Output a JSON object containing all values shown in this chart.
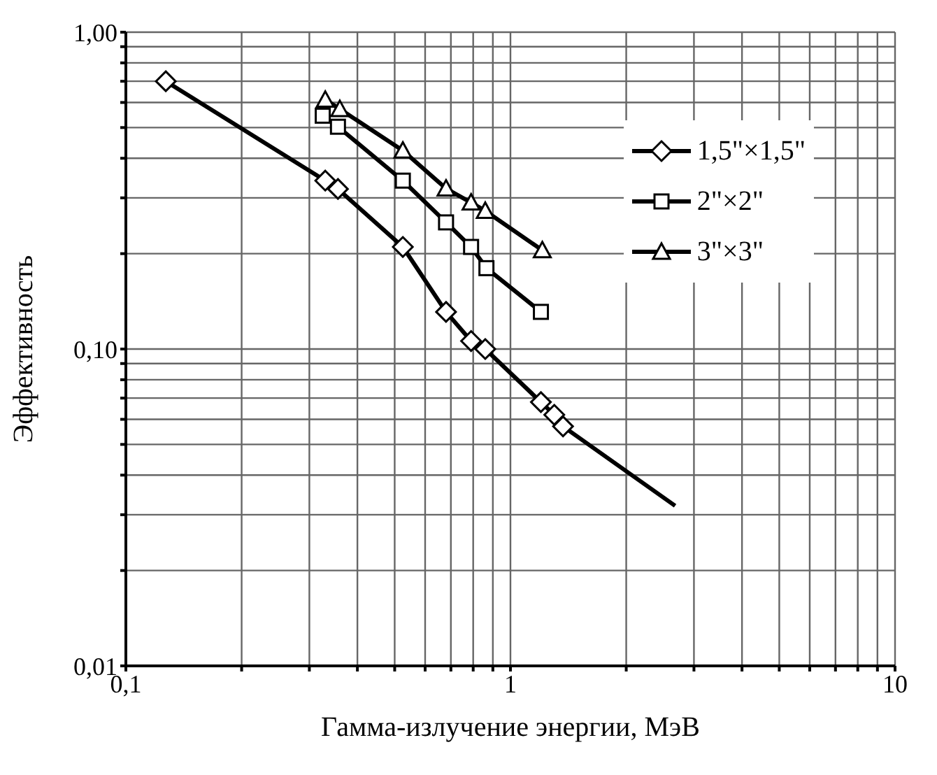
{
  "chart_data": {
    "type": "line",
    "xlabel": "Гамма-излучение энергии, МэВ",
    "ylabel": "Эффективность",
    "log": "xy",
    "grid": true,
    "legend": "top right",
    "line_style": "solid",
    "xlim": [
      0.1,
      10
    ],
    "ylim": [
      0.01,
      1
    ],
    "xticks": [
      {
        "value": 0.1,
        "label": "0,1"
      },
      {
        "value": 0.2,
        "label": null
      },
      {
        "value": 0.3,
        "label": null
      },
      {
        "value": 0.4,
        "label": null
      },
      {
        "value": 0.5,
        "label": null
      },
      {
        "value": 0.6,
        "label": null
      },
      {
        "value": 0.7,
        "label": null
      },
      {
        "value": 0.8,
        "label": null
      },
      {
        "value": 0.9,
        "label": null
      },
      1,
      {
        "value": 2,
        "label": null
      },
      {
        "value": 3,
        "label": null
      },
      {
        "value": 4,
        "label": null
      },
      {
        "value": 5,
        "label": null
      },
      {
        "value": 6,
        "label": null
      },
      {
        "value": 7,
        "label": null
      },
      {
        "value": 8,
        "label": null
      },
      {
        "value": 9,
        "label": null
      },
      10
    ],
    "yticks": [
      {
        "value": 0.01,
        "label": "0,01"
      },
      {
        "value": 0.02,
        "label": null
      },
      {
        "value": 0.03,
        "label": null
      },
      {
        "value": 0.04,
        "label": null
      },
      {
        "value": 0.05,
        "label": null
      },
      {
        "value": 0.06,
        "label": null
      },
      {
        "value": 0.07,
        "label": null
      },
      {
        "value": 0.08,
        "label": null
      },
      {
        "value": 0.09,
        "label": null
      },
      {
        "value": 0.1,
        "label": "0,10"
      },
      {
        "value": 0.2,
        "label": null
      },
      {
        "value": 0.3,
        "label": null
      },
      {
        "value": 0.4,
        "label": null
      },
      {
        "value": 0.5,
        "label": null
      },
      {
        "value": 0.6,
        "label": null
      },
      {
        "value": 0.7,
        "label": null
      },
      {
        "value": 0.8,
        "label": null
      },
      {
        "value": 0.9,
        "label": null
      },
      {
        "value": 1,
        "label": "1,00"
      }
    ],
    "series": [
      {
        "name": "1,5\"×1,5\"",
        "color": "#000000",
        "marker": "diamond",
        "x": [
          0.127,
          0.33,
          0.356,
          0.525,
          0.68,
          0.79,
          0.86,
          1.2,
          1.3,
          1.37
        ],
        "values": [
          0.7,
          0.34,
          0.32,
          0.21,
          0.131,
          0.106,
          0.1,
          0.068,
          0.062,
          0.057
        ]
      },
      {
        "type": "line",
        "color": "#000000",
        "marker": "none",
        "x": [
          1.37,
          2.68
        ],
        "values": [
          0.057,
          0.032
        ]
      },
      {
        "name": "2\"×2\"",
        "color": "#000000",
        "marker": "square",
        "x": [
          0.325,
          0.356,
          0.525,
          0.68,
          0.79,
          0.866,
          1.2
        ],
        "values": [
          0.545,
          0.503,
          0.34,
          0.251,
          0.21,
          0.18,
          0.131
        ]
      },
      {
        "name": "3\"×3\"",
        "color": "#000000",
        "marker": "triangle",
        "x": [
          0.33,
          0.36,
          0.525,
          0.68,
          0.79,
          0.86,
          1.21
        ],
        "values": [
          0.612,
          0.572,
          0.423,
          0.321,
          0.29,
          0.273,
          0.205
        ]
      }
    ]
  }
}
